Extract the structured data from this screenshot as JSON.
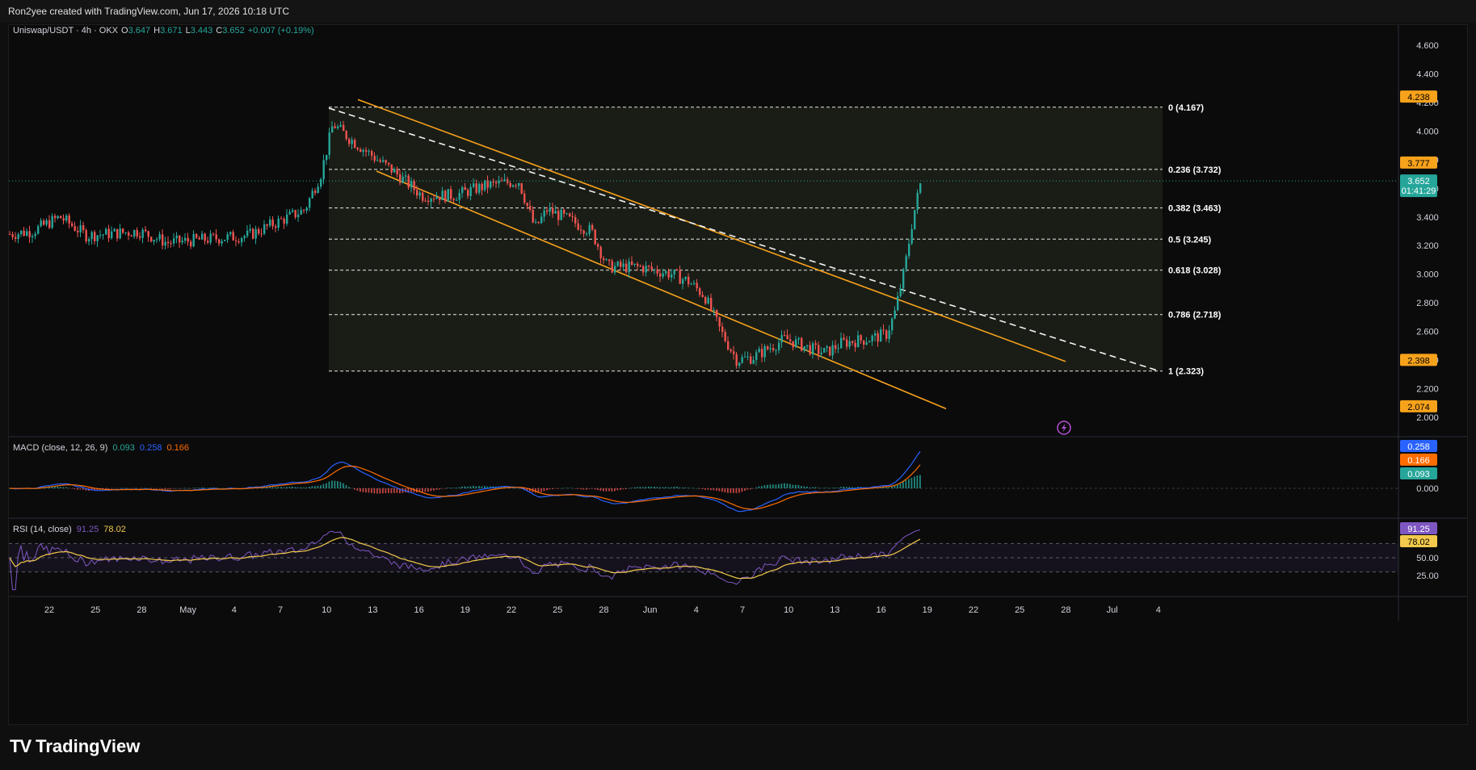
{
  "credit": "Ron2yee created with TradingView.com, Jun 17, 2026 10:18 UTC",
  "brand": "TradingView",
  "header": {
    "symbol": "Uniswap/USDT · 4h · OKX",
    "o_label": "O",
    "o": "3.647",
    "h_label": "H",
    "h": "3.671",
    "l_label": "L",
    "l": "3.443",
    "c_label": "C",
    "c": "3.652",
    "change": "+0.007 (+0.19%)"
  },
  "colors": {
    "up": "#26a69a",
    "down": "#ef5350",
    "fib": "#ffffff",
    "channel": "#f7a21b",
    "macd": "#2962ff",
    "signal": "#ff6d00",
    "rsi": "#7e57c2",
    "rsi_ma": "#f2c94c"
  },
  "price_axis": {
    "ticks": [
      "4.600",
      "4.400",
      "4.200",
      "4.000",
      "3.800",
      "3.600",
      "3.400",
      "3.200",
      "3.000",
      "2.800",
      "2.600",
      "2.400",
      "2.200",
      "2.000"
    ],
    "badges": [
      {
        "text": "4.238",
        "color": "#f7a21b"
      },
      {
        "text": "3.777",
        "color": "#f7a21b"
      },
      {
        "text": "3.652",
        "sub": "01:41:29",
        "color": "#26a69a"
      },
      {
        "text": "2.398",
        "color": "#f7a21b"
      },
      {
        "text": "2.074",
        "color": "#f7a21b"
      }
    ]
  },
  "fib_levels": [
    {
      "label": "0 (4.167)",
      "value": 4.167
    },
    {
      "label": "0.236 (3.732)",
      "value": 3.732
    },
    {
      "label": "0.382 (3.463)",
      "value": 3.463
    },
    {
      "label": "0.5 (3.245)",
      "value": 3.245
    },
    {
      "label": "0.618 (3.028)",
      "value": 3.028
    },
    {
      "label": "0.786 (2.718)",
      "value": 2.718
    },
    {
      "label": "1 (2.323)",
      "value": 2.323
    }
  ],
  "macd": {
    "label": "MACD (close, 12, 26, 9)",
    "v1": "0.093",
    "v2": "0.258",
    "v3": "0.166",
    "ticks": [
      "0.000"
    ],
    "badges": [
      {
        "text": "0.258",
        "color": "#2962ff"
      },
      {
        "text": "0.166",
        "color": "#ff6d00"
      },
      {
        "text": "0.093",
        "color": "#26a69a"
      }
    ]
  },
  "rsi": {
    "label": "RSI (14, close)",
    "v1": "91.25",
    "v2": "78.02",
    "ticks": [
      "50.00",
      "25.00"
    ],
    "badges": [
      {
        "text": "91.25",
        "color": "#7e57c2"
      },
      {
        "text": "78.02",
        "color": "#f2c94c"
      }
    ]
  },
  "time_axis": [
    "22",
    "25",
    "28",
    "May",
    "4",
    "7",
    "10",
    "13",
    "16",
    "19",
    "22",
    "25",
    "28",
    "Jun",
    "4",
    "7",
    "10",
    "13",
    "16",
    "19",
    "22",
    "25",
    "28",
    "Jul",
    "4"
  ],
  "chart_data": {
    "type": "candlestick",
    "title": "Uniswap/USDT · 4h · OKX",
    "ylim": [
      1.95,
      4.7
    ],
    "x_start": "Apr 19",
    "x_end": "Jun 17",
    "close_path": [
      [
        "Apr 19",
        3.28
      ],
      [
        "Apr 21",
        3.3
      ],
      [
        "Apr 23",
        3.4
      ],
      [
        "Apr 25",
        3.27
      ],
      [
        "Apr 28",
        3.3
      ],
      [
        "Apr 30",
        3.22
      ],
      [
        "May 2",
        3.24
      ],
      [
        "May 5",
        3.27
      ],
      [
        "May 7",
        3.4
      ],
      [
        "May 8",
        3.45
      ],
      [
        "May 9",
        3.7
      ],
      [
        "May 10",
        4.05
      ],
      [
        "May 11",
        3.95
      ],
      [
        "May 13",
        3.8
      ],
      [
        "May 14",
        3.72
      ],
      [
        "May 16",
        3.55
      ],
      [
        "May 18",
        3.55
      ],
      [
        "May 20",
        3.62
      ],
      [
        "May 22",
        3.65
      ],
      [
        "May 23",
        3.32
      ],
      [
        "May 24",
        3.45
      ],
      [
        "May 25",
        3.4
      ],
      [
        "May 27",
        3.3
      ],
      [
        "May 28",
        3.05
      ],
      [
        "May 30",
        3.05
      ],
      [
        "Jun 1",
        3.0
      ],
      [
        "Jun 2",
        2.95
      ],
      [
        "Jun 3",
        2.85
      ],
      [
        "Jun 4",
        2.6
      ],
      [
        "Jun 5",
        2.4
      ],
      [
        "Jun 6",
        2.42
      ],
      [
        "Jun 8",
        2.55
      ],
      [
        "Jun 10",
        2.48
      ],
      [
        "Jun 11",
        2.45
      ],
      [
        "Jun 12",
        2.52
      ],
      [
        "Jun 14",
        2.55
      ],
      [
        "Jun 15",
        2.58
      ],
      [
        "Jun 15 PM",
        2.72
      ],
      [
        "Jun 16",
        3.05
      ],
      [
        "Jun 16 PM",
        3.4
      ],
      [
        "Jun 17",
        3.652
      ]
    ],
    "fibonacci": {
      "high": 4.167,
      "low": 2.323
    },
    "indicators": [
      "MACD (close, 12, 26, 9)",
      "RSI (14, close)"
    ]
  }
}
